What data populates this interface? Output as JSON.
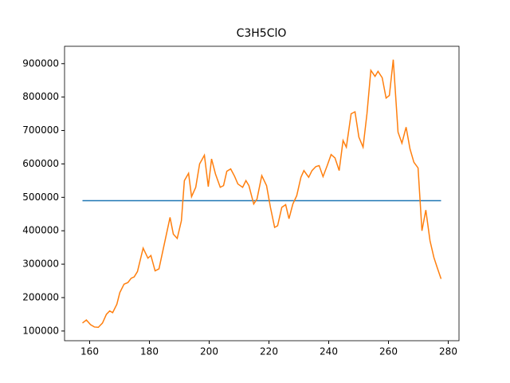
{
  "chart_data": {
    "type": "line",
    "title": "C3H5ClO",
    "xlim": [
      151.6,
      283.6
    ],
    "xticks": [
      160,
      180,
      200,
      220,
      240,
      260,
      280
    ],
    "ylim": [
      71000,
      952000
    ],
    "yticks": [
      100000,
      200000,
      300000,
      400000,
      500000,
      600000,
      700000,
      800000,
      900000
    ],
    "series": [
      {
        "color": "#1f77b4",
        "x": [
          157.6,
          277.6
        ],
        "values": [
          490000,
          490000
        ]
      },
      {
        "color": "#ff7f0e",
        "x": [
          157.6,
          158.9,
          160.3,
          161.6,
          162.9,
          164.3,
          165.6,
          166.7,
          167.7,
          169.1,
          170.1,
          171.5,
          172.8,
          173.9,
          174.9,
          176.0,
          177.9,
          179.5,
          180.5,
          181.9,
          183.2,
          186.9,
          188.0,
          189.3,
          190.7,
          191.7,
          193.1,
          194.1,
          195.5,
          196.8,
          198.4,
          199.7,
          200.8,
          202.1,
          203.7,
          204.8,
          205.9,
          207.2,
          208.5,
          209.6,
          211.2,
          212.3,
          213.3,
          214.9,
          216.0,
          217.6,
          219.2,
          220.5,
          221.9,
          222.9,
          224.3,
          225.6,
          226.7,
          228.0,
          229.3,
          230.7,
          231.7,
          233.3,
          234.4,
          235.7,
          236.8,
          238.1,
          239.5,
          240.8,
          242.1,
          243.5,
          244.8,
          245.9,
          247.5,
          248.8,
          250.1,
          251.5,
          252.8,
          254.1,
          255.5,
          256.5,
          257.9,
          259.2,
          260.3,
          261.6,
          263.2,
          264.5,
          265.9,
          267.2,
          268.5,
          269.9,
          271.2,
          272.5,
          273.9,
          275.2,
          276.3,
          277.6
        ],
        "values": [
          124000,
          133000,
          119000,
          112000,
          111000,
          124000,
          150000,
          160000,
          155000,
          180000,
          215000,
          240000,
          245000,
          258000,
          262000,
          278000,
          348000,
          318000,
          326000,
          280000,
          286000,
          440000,
          390000,
          377000,
          430000,
          550000,
          572000,
          502000,
          530000,
          600000,
          626000,
          532000,
          615000,
          570000,
          530000,
          535000,
          578000,
          585000,
          563000,
          540000,
          530000,
          550000,
          535000,
          480000,
          495000,
          565000,
          535000,
          470000,
          410000,
          415000,
          470000,
          478000,
          436000,
          480000,
          505000,
          560000,
          580000,
          560000,
          580000,
          592000,
          595000,
          562000,
          595000,
          628000,
          618000,
          580000,
          670000,
          650000,
          750000,
          756000,
          680000,
          650000,
          750000,
          880000,
          862000,
          877000,
          858000,
          797000,
          805000,
          912000,
          695000,
          662000,
          710000,
          645000,
          605000,
          588000,
          400000,
          462000,
          370000,
          320000,
          290000,
          256000
        ]
      }
    ]
  }
}
